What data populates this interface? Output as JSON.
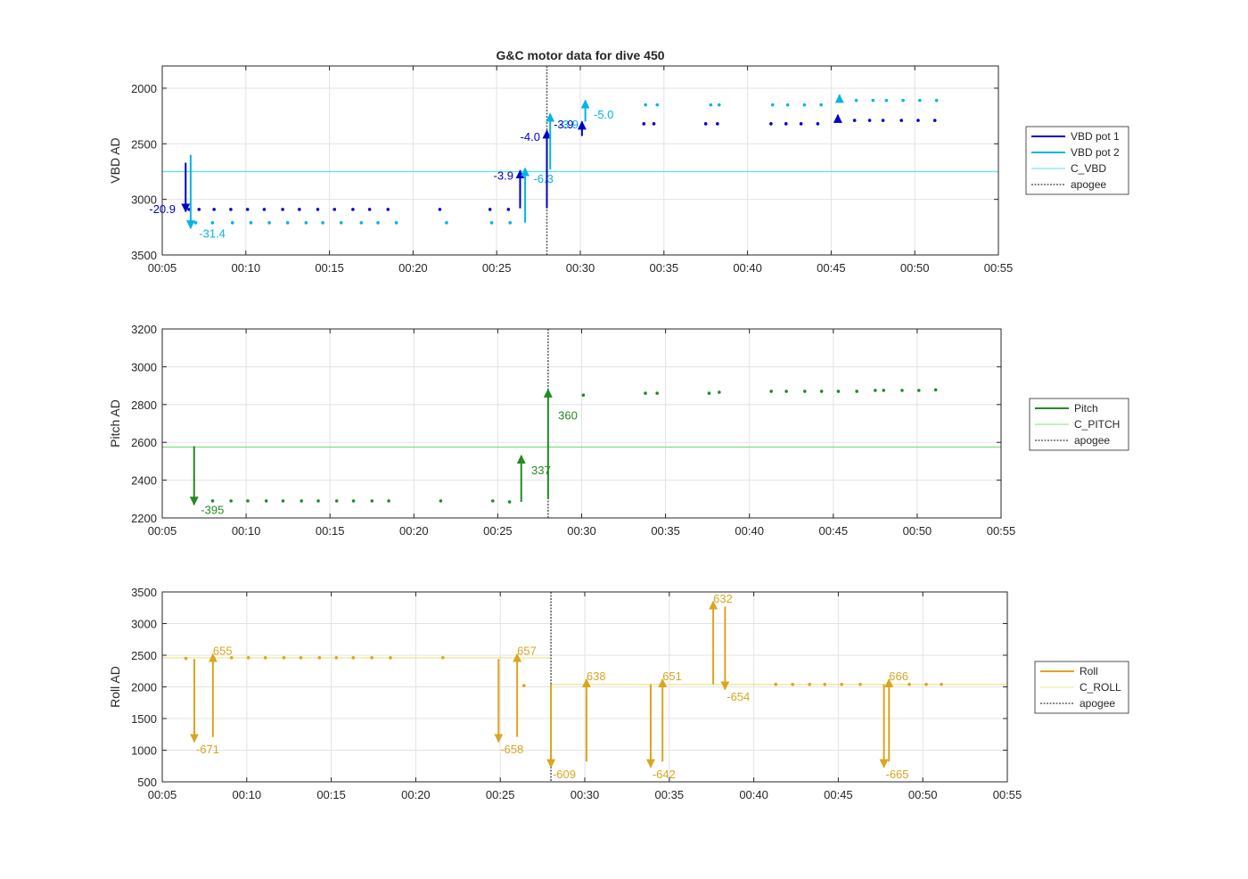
{
  "figure": {
    "title": "G&C motor data for dive 450",
    "colors": {
      "vbd1": "#0000c8",
      "vbd2": "#00b4e6",
      "c_vbd": "#5ce0e6",
      "pitch": "#228b22",
      "c_pitch": "#7ee07e",
      "roll": "#daa520",
      "c_roll": "#f0e68c",
      "apogee": "#606060",
      "grid": "#e3e3e3",
      "axis": "#262626"
    }
  },
  "chart_data": [
    {
      "id": "vbd",
      "type": "scatter",
      "title": "G&C motor data for dive 450",
      "ylabel": "VBD AD",
      "xlabel": "",
      "xlim": [
        5,
        55
      ],
      "ylim": [
        3500,
        1800
      ],
      "y_reversed": true,
      "grid": true,
      "xticks": [
        5,
        10,
        15,
        20,
        25,
        30,
        35,
        40,
        45,
        50,
        55
      ],
      "xtick_labels": [
        "00:05",
        "00:10",
        "00:15",
        "00:20",
        "00:25",
        "00:30",
        "00:35",
        "00:40",
        "00:45",
        "00:50",
        "00:55"
      ],
      "yticks": [
        2000,
        2500,
        3000,
        3500
      ],
      "ytick_labels": [
        "2000",
        "2500",
        "3000",
        "3500"
      ],
      "legend": {
        "placement": "right",
        "entries": [
          {
            "label": "VBD pot 1",
            "color_key": "vbd1",
            "style": "thick"
          },
          {
            "label": "VBD pot 2",
            "color_key": "vbd2",
            "style": "thick"
          },
          {
            "label": "C_VBD",
            "color_key": "c_vbd",
            "style": "thin"
          },
          {
            "label": "apogee",
            "color_key": "apogee",
            "style": "dotted"
          }
        ]
      },
      "hlines": [
        {
          "y": 2750,
          "color_key": "c_vbd"
        }
      ],
      "apogee_x": 28.0,
      "series": [
        {
          "name": "VBD pot 1",
          "color_key": "vbd1",
          "x": [
            6.6,
            7.2,
            8.1,
            9.1,
            10.1,
            11.1,
            12.2,
            13.2,
            14.3,
            15.3,
            16.4,
            17.4,
            18.5,
            21.6,
            24.6,
            25.7,
            33.8,
            34.4,
            37.5,
            38.2,
            41.4,
            42.3,
            43.2,
            44.2,
            45.4,
            46.4,
            47.3,
            48.1,
            49.2,
            50.2,
            51.2
          ],
          "y": [
            3090,
            3090,
            3090,
            3090,
            3090,
            3090,
            3090,
            3090,
            3090,
            3090,
            3090,
            3090,
            3090,
            3090,
            3090,
            3090,
            2320,
            2320,
            2320,
            2320,
            2320,
            2320,
            2320,
            2320,
            2290,
            2290,
            2290,
            2290,
            2290,
            2290,
            2290
          ]
        },
        {
          "name": "VBD pot 2",
          "color_key": "vbd2",
          "x": [
            7.0,
            8.0,
            9.2,
            10.3,
            11.4,
            12.5,
            13.6,
            14.6,
            15.7,
            16.9,
            17.9,
            19.0,
            22.0,
            24.7,
            25.8,
            33.9,
            34.6,
            37.8,
            38.3,
            41.5,
            42.4,
            43.4,
            44.4,
            45.5,
            46.5,
            47.5,
            48.3,
            49.3,
            50.3,
            51.3
          ],
          "y": [
            3210,
            3210,
            3210,
            3210,
            3210,
            3210,
            3210,
            3210,
            3210,
            3210,
            3210,
            3210,
            3210,
            3210,
            3210,
            2150,
            2150,
            2150,
            2150,
            2150,
            2150,
            2150,
            2150,
            2110,
            2110,
            2110,
            2110,
            2110,
            2110,
            2110
          ]
        }
      ],
      "arrows": [
        {
          "x": 6.4,
          "y0": 2670,
          "y1": 3110,
          "color_key": "vbd1",
          "label": "-20.9",
          "lx": -0.6,
          "ly": 3090,
          "anchor": "end"
        },
        {
          "x": 6.7,
          "y0": 2600,
          "y1": 3260,
          "color_key": "vbd2",
          "label": "-31.4",
          "lx": 0.5,
          "ly": 3310,
          "anchor": "start"
        },
        {
          "x": 26.4,
          "y0": 3080,
          "y1": 2740,
          "color_key": "vbd1",
          "label": "-3.9",
          "lx": -0.4,
          "ly": 2790,
          "anchor": "end"
        },
        {
          "x": 26.7,
          "y0": 3210,
          "y1": 2720,
          "color_key": "vbd2",
          "label": "-6.3",
          "lx": 0.5,
          "ly": 2820,
          "anchor": "start"
        },
        {
          "x": 28.0,
          "y0": 3080,
          "y1": 2380,
          "color_key": "vbd1",
          "label": "-4.0",
          "lx": -0.4,
          "ly": 2440,
          "anchor": "end"
        },
        {
          "x": 28.2,
          "y0": 2730,
          "y1": 2230,
          "color_key": "vbd2",
          "label": "-3.9",
          "lx": 0.5,
          "ly": 2330,
          "anchor": "start"
        },
        {
          "x": 30.1,
          "y0": 2430,
          "y1": 2300,
          "color_key": "vbd1",
          "label": "-3.9",
          "lx": -0.5,
          "ly": 2330,
          "anchor": "end"
        },
        {
          "x": 30.3,
          "y0": 2300,
          "y1": 2110,
          "color_key": "vbd2",
          "label": "-5.0",
          "lx": 0.5,
          "ly": 2240,
          "anchor": "start"
        },
        {
          "x": 45.4,
          "y0": 2300,
          "y1": 2240,
          "color_key": "vbd1",
          "label": "",
          "lx": 0,
          "ly": 0,
          "anchor": "start"
        },
        {
          "x": 45.5,
          "y0": 2120,
          "y1": 2060,
          "color_key": "vbd2",
          "label": "",
          "lx": 0,
          "ly": 0,
          "anchor": "start"
        }
      ]
    },
    {
      "id": "pitch",
      "type": "scatter",
      "title": "",
      "ylabel": "Pitch AD",
      "xlabel": "",
      "xlim": [
        5,
        55
      ],
      "ylim": [
        2200,
        3200
      ],
      "y_reversed": false,
      "grid": true,
      "xticks": [
        5,
        10,
        15,
        20,
        25,
        30,
        35,
        40,
        45,
        50,
        55
      ],
      "xtick_labels": [
        "00:05",
        "00:10",
        "00:15",
        "00:20",
        "00:25",
        "00:30",
        "00:35",
        "00:40",
        "00:45",
        "00:50",
        "00:55"
      ],
      "yticks": [
        2200,
        2400,
        2600,
        2800,
        3000,
        3200
      ],
      "ytick_labels": [
        "2200",
        "2400",
        "2600",
        "2800",
        "3000",
        "3200"
      ],
      "legend": {
        "placement": "right",
        "entries": [
          {
            "label": "Pitch",
            "color_key": "pitch",
            "style": "thick"
          },
          {
            "label": "C_PITCH",
            "color_key": "c_pitch",
            "style": "thin"
          },
          {
            "label": "apogee",
            "color_key": "apogee",
            "style": "dotted"
          }
        ]
      },
      "hlines": [
        {
          "y": 2575,
          "color_key": "c_pitch"
        }
      ],
      "apogee_x": 28.0,
      "series": [
        {
          "name": "Pitch",
          "color_key": "pitch",
          "x": [
            8.0,
            9.1,
            10.1,
            11.2,
            12.2,
            13.3,
            14.3,
            15.4,
            16.4,
            17.5,
            18.5,
            21.6,
            24.7,
            25.7,
            30.1,
            33.8,
            34.5,
            37.6,
            38.2,
            41.3,
            42.2,
            43.3,
            44.3,
            45.3,
            46.4,
            47.5,
            48.0,
            49.1,
            50.1,
            51.1
          ],
          "y": [
            2290,
            2290,
            2290,
            2290,
            2290,
            2290,
            2290,
            2290,
            2290,
            2290,
            2290,
            2290,
            2290,
            2285,
            2850,
            2860,
            2860,
            2860,
            2865,
            2870,
            2870,
            2870,
            2870,
            2870,
            2870,
            2875,
            2875,
            2875,
            2875,
            2878
          ]
        }
      ],
      "arrows": [
        {
          "x": 6.9,
          "y0": 2580,
          "y1": 2270,
          "color_key": "pitch",
          "label": "-395",
          "lx": 0.4,
          "ly": 2240,
          "anchor": "start"
        },
        {
          "x": 26.4,
          "y0": 2285,
          "y1": 2530,
          "color_key": "pitch",
          "label": "337",
          "lx": 0.6,
          "ly": 2450,
          "anchor": "start"
        },
        {
          "x": 28.0,
          "y0": 2300,
          "y1": 2880,
          "color_key": "pitch",
          "label": "360",
          "lx": 0.6,
          "ly": 2740,
          "anchor": "start"
        }
      ]
    },
    {
      "id": "roll",
      "type": "scatter",
      "title": "",
      "ylabel": "Roll AD",
      "xlabel": "",
      "xlim": [
        5,
        55
      ],
      "ylim": [
        500,
        3500
      ],
      "y_reversed": false,
      "grid": true,
      "xticks": [
        5,
        10,
        15,
        20,
        25,
        30,
        35,
        40,
        45,
        50,
        55
      ],
      "xtick_labels": [
        "00:05",
        "00:10",
        "00:15",
        "00:20",
        "00:25",
        "00:30",
        "00:35",
        "00:40",
        "00:45",
        "00:50",
        "00:55"
      ],
      "yticks": [
        500,
        1000,
        1500,
        2000,
        2500,
        3000,
        3500
      ],
      "ytick_labels": [
        "500",
        "1000",
        "1500",
        "2000",
        "2500",
        "3000",
        "3500"
      ],
      "legend": {
        "placement": "right",
        "entries": [
          {
            "label": "Roll",
            "color_key": "roll",
            "style": "thick"
          },
          {
            "label": "C_ROLL",
            "color_key": "c_roll",
            "style": "thin"
          },
          {
            "label": "apogee",
            "color_key": "apogee",
            "style": "dotted"
          }
        ]
      },
      "hlines": [
        {
          "y": 2460,
          "x0": 5,
          "x1": 28.0,
          "color_key": "c_roll"
        },
        {
          "y": 2040,
          "x0": 28.0,
          "x1": 55,
          "color_key": "c_roll"
        }
      ],
      "apogee_x": 28.0,
      "series": [
        {
          "name": "Roll",
          "color_key": "roll",
          "x": [
            6.4,
            9.1,
            10.1,
            11.1,
            12.2,
            13.2,
            14.3,
            15.3,
            16.3,
            17.4,
            18.5,
            21.6,
            26.4,
            41.3,
            42.3,
            43.3,
            44.2,
            45.2,
            46.3,
            49.2,
            50.2,
            51.1
          ],
          "y": [
            2450,
            2460,
            2460,
            2460,
            2460,
            2460,
            2460,
            2460,
            2460,
            2460,
            2460,
            2460,
            2020,
            2040,
            2040,
            2040,
            2040,
            2040,
            2040,
            2040,
            2040,
            2040
          ]
        }
      ],
      "arrows": [
        {
          "x": 6.9,
          "y0": 2440,
          "y1": 1130,
          "color_key": "roll",
          "label": "-671",
          "lx": 0.1,
          "ly": 1010,
          "anchor": "start"
        },
        {
          "x": 8.0,
          "y0": 1210,
          "y1": 2520,
          "color_key": "roll",
          "label": "655",
          "lx": 0.0,
          "ly": 2560,
          "anchor": "start"
        },
        {
          "x": 24.9,
          "y0": 2440,
          "y1": 1130,
          "color_key": "roll",
          "label": "-658",
          "lx": 0.1,
          "ly": 1010,
          "anchor": "start"
        },
        {
          "x": 26.0,
          "y0": 1210,
          "y1": 2520,
          "color_key": "roll",
          "label": "657",
          "lx": 0.0,
          "ly": 2560,
          "anchor": "start"
        },
        {
          "x": 28.0,
          "y0": 2040,
          "y1": 730,
          "color_key": "roll",
          "label": "-609",
          "lx": 0.1,
          "ly": 610,
          "anchor": "start"
        },
        {
          "x": 30.1,
          "y0": 820,
          "y1": 2120,
          "color_key": "roll",
          "label": "638",
          "lx": 0.0,
          "ly": 2160,
          "anchor": "start"
        },
        {
          "x": 33.9,
          "y0": 2040,
          "y1": 730,
          "color_key": "roll",
          "label": "-642",
          "lx": 0.1,
          "ly": 610,
          "anchor": "start"
        },
        {
          "x": 34.6,
          "y0": 820,
          "y1": 2120,
          "color_key": "roll",
          "label": "651",
          "lx": 0.0,
          "ly": 2160,
          "anchor": "start"
        },
        {
          "x": 37.6,
          "y0": 2040,
          "y1": 3350,
          "color_key": "roll",
          "label": "632",
          "lx": 0.0,
          "ly": 3390,
          "anchor": "start"
        },
        {
          "x": 38.3,
          "y0": 3270,
          "y1": 1960,
          "color_key": "roll",
          "label": "-654",
          "lx": 0.1,
          "ly": 1840,
          "anchor": "start"
        },
        {
          "x": 47.7,
          "y0": 2040,
          "y1": 730,
          "color_key": "roll",
          "label": "-665",
          "lx": 0.1,
          "ly": 610,
          "anchor": "start"
        },
        {
          "x": 48.0,
          "y0": 820,
          "y1": 2120,
          "color_key": "roll",
          "label": "666",
          "lx": 0.0,
          "ly": 2160,
          "anchor": "start"
        }
      ]
    }
  ]
}
